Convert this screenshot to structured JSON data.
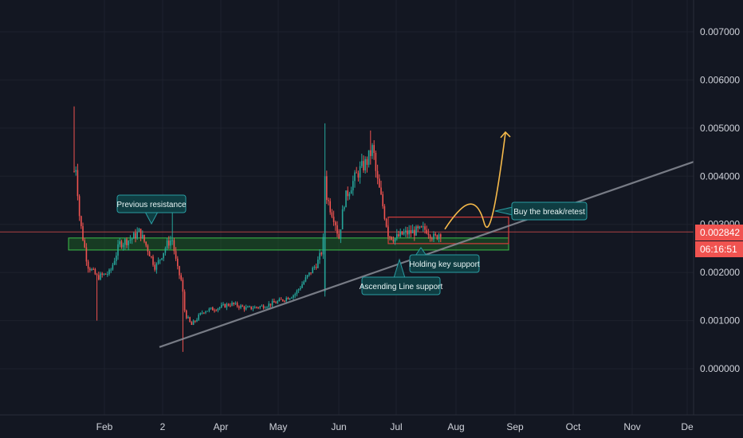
{
  "colors": {
    "background": "#131722",
    "grid": "#1e222d",
    "up": "#26a69a",
    "down": "#ef5350",
    "axis_text": "#d1d4dc",
    "price_line": "#f05350",
    "support_zone_fill": "#1c5a25",
    "support_zone_border": "#3cbf4a",
    "resistance_box": "#d33c3c",
    "trendline": "#8a8d96",
    "projection": "#f5b94a",
    "callout_fill": "#0f3d42",
    "callout_border": "#2a9da3"
  },
  "chart_data": {
    "type": "candlestick",
    "y_axis": {
      "range": [
        -0.00095,
        0.00775
      ],
      "ticks": [
        0.0,
        0.001,
        0.002,
        0.003,
        0.004,
        0.005,
        0.006,
        0.007
      ],
      "tick_labels": [
        "0.000000",
        "0.001000",
        "0.002000",
        "0.003000",
        "0.004000",
        "0.005000",
        "0.006000",
        "0.007000"
      ]
    },
    "x_axis": {
      "labels": [
        "Feb",
        "2",
        "Apr",
        "May",
        "Jun",
        "Jul",
        "Aug",
        "Sep",
        "Oct",
        "Nov",
        "De"
      ]
    },
    "last_price": {
      "value": 0.002842,
      "label": "0.002842",
      "countdown": "06:16:51"
    },
    "annotations": [
      {
        "text": "Previous resistance"
      },
      {
        "text": "Buy the break/retest"
      },
      {
        "text": "Holding key support"
      },
      {
        "text": "Ascending Line support"
      }
    ],
    "anchors": {
      "start_close": 0.0041,
      "spike_high": 0.00545,
      "low_feb": 0.0019,
      "resistance_feb": 0.0029,
      "crash_low": 0.0009,
      "range_april": 0.00125,
      "may_end": 0.0022,
      "june_spike": 0.00505,
      "june_peak": 0.0049,
      "july_range": 0.0028,
      "last": 0.002842
    },
    "support_zone": [
      0.0025,
      0.0027
    ],
    "resistance_box": [
      0.0026,
      0.00315
    ],
    "trendline": [
      [
        0.00045
      ],
      [
        0.0043
      ]
    ],
    "projection_target": 0.0049
  }
}
